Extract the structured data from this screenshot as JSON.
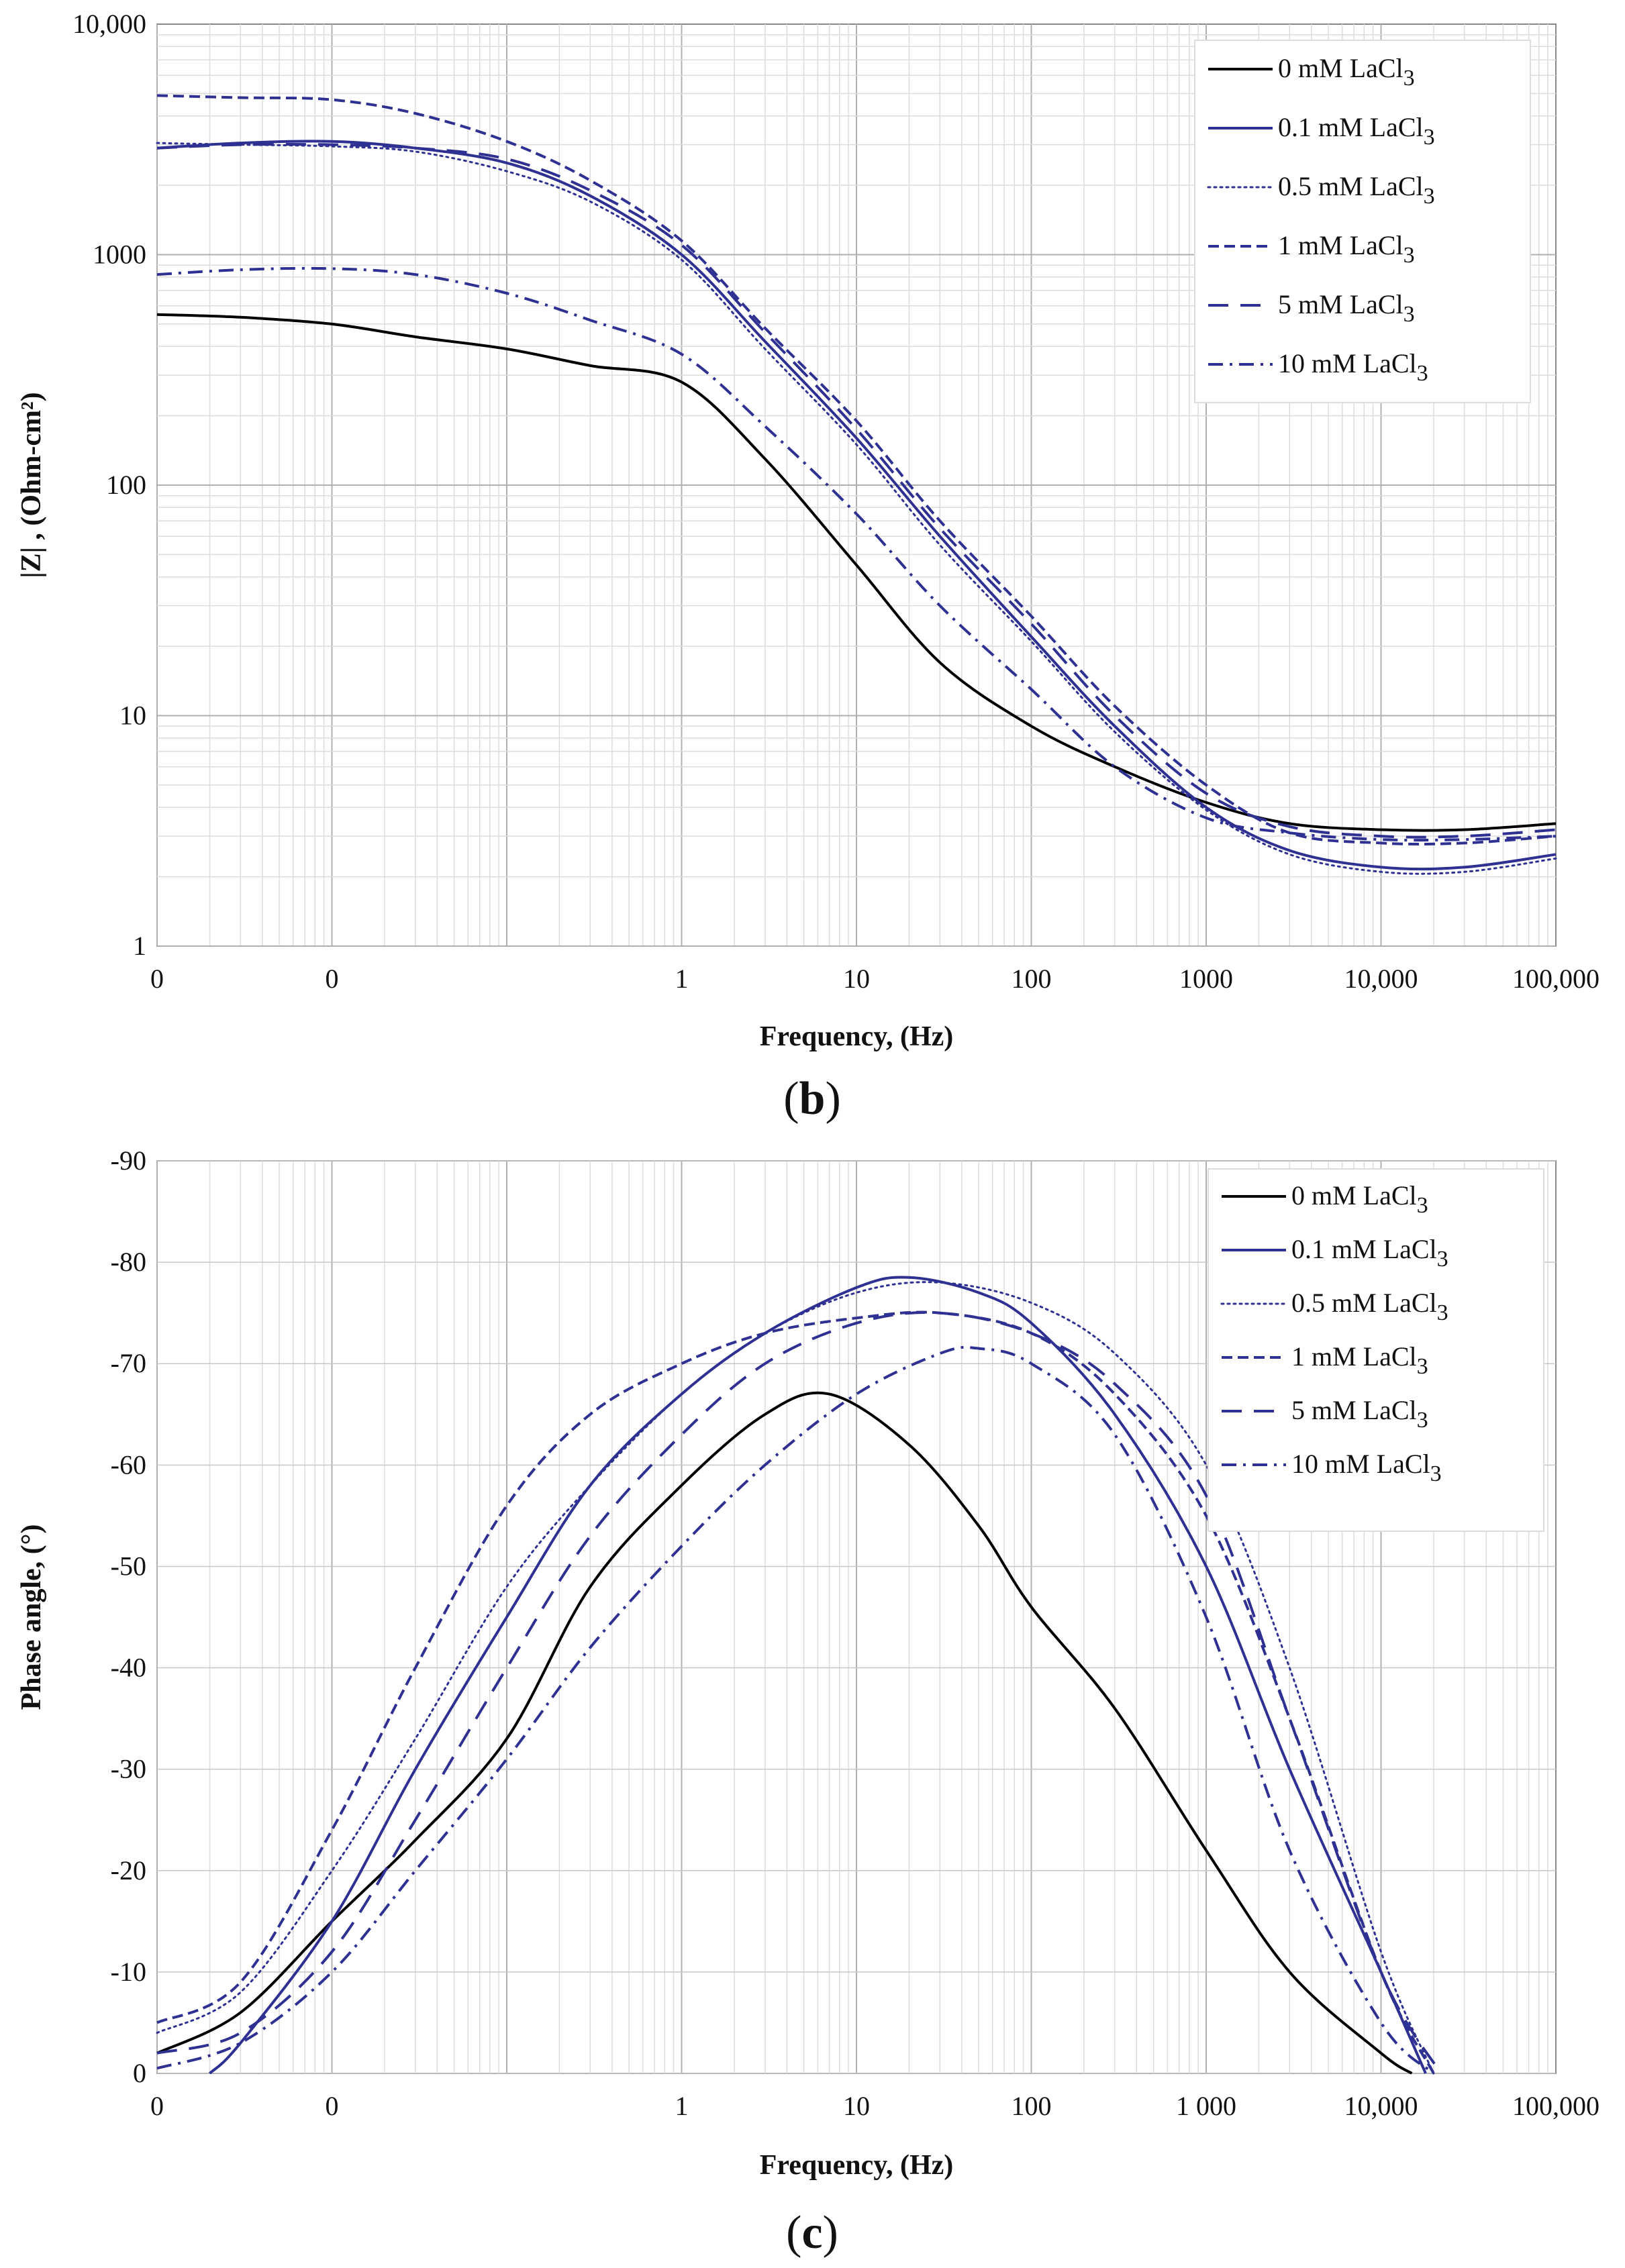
{
  "chart_data": [
    {
      "type": "line",
      "panel": "b",
      "panel_label": "b",
      "xlabel": "Frequency, (Hz)",
      "ylabel": "|Z| , (Ohm-cm²)",
      "x_scale": "log",
      "y_scale": "log",
      "xlim": [
        0.001,
        100000
      ],
      "ylim": [
        1,
        10000
      ],
      "x_tick_values": [
        0.001,
        0.01,
        1,
        10,
        100,
        1000,
        10000,
        100000
      ],
      "x_tick_labels": [
        "0",
        "0",
        "1",
        "10",
        "100",
        "1000",
        "10,000",
        "100,000"
      ],
      "y_tick_values": [
        1,
        10,
        100,
        1000,
        10000
      ],
      "y_tick_labels": [
        "1",
        "10",
        "100",
        "1000",
        "10,000"
      ],
      "grid": true,
      "legend_position": "top-right",
      "series": [
        {
          "name": "0 mM LaCl",
          "subscript": "3",
          "color": "#000000",
          "style": "solid",
          "x": [
            0.001,
            0.003,
            0.01,
            0.03,
            0.1,
            0.3,
            1,
            3,
            10,
            30,
            100,
            300,
            1000,
            3000,
            10000,
            30000,
            100000
          ],
          "y": [
            550,
            535,
            500,
            440,
            390,
            330,
            280,
            130,
            45,
            17,
            9,
            6,
            4.2,
            3.4,
            3.2,
            3.2,
            3.4
          ]
        },
        {
          "name": "0.1 mM LaCl",
          "subscript": "3",
          "color": "#2e3192",
          "style": "solid",
          "x": [
            0.001,
            0.003,
            0.01,
            0.03,
            0.1,
            0.3,
            1,
            3,
            10,
            30,
            100,
            300,
            1000,
            3000,
            10000,
            30000,
            100000
          ],
          "y": [
            2900,
            3050,
            3100,
            2900,
            2500,
            1800,
            1000,
            420,
            160,
            60,
            22,
            9,
            4,
            2.6,
            2.2,
            2.2,
            2.5
          ]
        },
        {
          "name": "0.5 mM LaCl",
          "subscript": "3",
          "color": "#2e3192",
          "style": "dotted",
          "x": [
            0.001,
            0.003,
            0.01,
            0.03,
            0.1,
            0.3,
            1,
            3,
            10,
            30,
            100,
            300,
            1000,
            3000,
            10000,
            30000,
            100000
          ],
          "y": [
            3050,
            3000,
            2950,
            2800,
            2300,
            1700,
            950,
            390,
            150,
            55,
            21,
            8.5,
            3.9,
            2.5,
            2.1,
            2.1,
            2.4
          ]
        },
        {
          "name": "1 mM LaCl",
          "subscript": "3",
          "color": "#2e3192",
          "style": "short-dash",
          "x": [
            0.001,
            0.003,
            0.01,
            0.03,
            0.1,
            0.3,
            1,
            3,
            10,
            30,
            100,
            300,
            1000,
            3000,
            10000,
            30000,
            100000
          ],
          "y": [
            4900,
            4800,
            4700,
            4100,
            3100,
            2100,
            1150,
            480,
            190,
            70,
            27,
            11,
            5,
            3.1,
            2.8,
            2.8,
            3.0
          ]
        },
        {
          "name": "5 mM LaCl",
          "subscript": "3",
          "color": "#2e3192",
          "style": "long-dash",
          "x": [
            0.001,
            0.003,
            0.01,
            0.03,
            0.1,
            0.3,
            1,
            3,
            10,
            30,
            100,
            300,
            1000,
            3000,
            10000,
            30000,
            100000
          ],
          "y": [
            2900,
            3000,
            3000,
            2900,
            2600,
            1900,
            1100,
            460,
            175,
            65,
            25,
            10,
            4.6,
            3.3,
            3.0,
            3.0,
            3.2
          ]
        },
        {
          "name": "10 mM LaCl",
          "subscript": "3",
          "color": "#2e3192",
          "style": "dash-dot",
          "x": [
            0.001,
            0.003,
            0.01,
            0.03,
            0.1,
            0.3,
            1,
            3,
            10,
            30,
            100,
            300,
            1000,
            3000,
            10000,
            30000,
            100000
          ],
          "y": [
            820,
            860,
            870,
            820,
            680,
            520,
            370,
            180,
            75,
            30,
            13,
            6,
            3.6,
            3.1,
            2.9,
            2.9,
            3.0
          ]
        }
      ]
    },
    {
      "type": "line",
      "panel": "c",
      "panel_label": "c",
      "xlabel": "Frequency, (Hz)",
      "ylabel": "Phase angle, (°)",
      "x_scale": "log",
      "y_scale": "linear",
      "xlim": [
        0.001,
        100000
      ],
      "ylim": [
        -90,
        0
      ],
      "y_inverted_top_value": -90,
      "x_tick_values": [
        0.001,
        0.01,
        1,
        10,
        100,
        1000,
        10000,
        100000
      ],
      "x_tick_labels": [
        "0",
        "0",
        "1",
        "10",
        "100",
        "1 000",
        "10,000",
        "100,000"
      ],
      "y_tick_values": [
        -90,
        -80,
        -70,
        -60,
        -50,
        -40,
        -30,
        -20,
        -10,
        0
      ],
      "y_tick_labels": [
        "-90",
        "-80",
        "-70",
        "-60",
        "-50",
        "-40",
        "-30",
        "-20",
        "-10",
        "0"
      ],
      "grid": true,
      "legend_position": "top-right",
      "series": [
        {
          "name": "0 mM LaCl",
          "subscript": "3",
          "color": "#000000",
          "style": "solid",
          "x": [
            0.001,
            0.003,
            0.01,
            0.03,
            0.1,
            0.3,
            1,
            3,
            7,
            20,
            50,
            100,
            300,
            1000,
            3000,
            10000,
            15000
          ],
          "y": [
            -2,
            -6,
            -15,
            -23,
            -33,
            -48,
            -58,
            -65,
            -67,
            -62,
            -54,
            -46,
            -36,
            -22,
            -10,
            -2,
            0
          ]
        },
        {
          "name": "0.1 mM LaCl",
          "subscript": "3",
          "color": "#2e3192",
          "style": "solid",
          "x": [
            0.002,
            0.003,
            0.01,
            0.03,
            0.1,
            0.3,
            1,
            3,
            10,
            20,
            50,
            100,
            300,
            1000,
            3000,
            10000,
            18000
          ],
          "y": [
            0,
            -3,
            -15,
            -30,
            -45,
            -58,
            -67,
            -73,
            -77.5,
            -78.5,
            -77,
            -74,
            -65,
            -50,
            -30,
            -10,
            0
          ]
        },
        {
          "name": "0.5 mM LaCl",
          "subscript": "3",
          "color": "#2e3192",
          "style": "dotted",
          "x": [
            0.001,
            0.003,
            0.01,
            0.03,
            0.1,
            0.3,
            1,
            3,
            10,
            30,
            100,
            300,
            1000,
            3000,
            10000,
            20000
          ],
          "y": [
            -4,
            -8,
            -20,
            -33,
            -48,
            -58,
            -67,
            -73,
            -77,
            -78,
            -76,
            -71,
            -60,
            -40,
            -12,
            0
          ]
        },
        {
          "name": "1 mM LaCl",
          "subscript": "3",
          "color": "#2e3192",
          "style": "short-dash",
          "x": [
            0.001,
            0.003,
            0.01,
            0.03,
            0.1,
            0.3,
            1,
            3,
            10,
            30,
            100,
            300,
            1000,
            3000,
            10000,
            20000
          ],
          "y": [
            -5,
            -9,
            -24,
            -40,
            -56,
            -65,
            -70,
            -73,
            -74.5,
            -75,
            -73,
            -67,
            -55,
            -35,
            -10,
            0
          ]
        },
        {
          "name": "5 mM LaCl",
          "subscript": "3",
          "color": "#2e3192",
          "style": "long-dash",
          "x": [
            0.001,
            0.003,
            0.01,
            0.03,
            0.1,
            0.3,
            1,
            3,
            10,
            30,
            100,
            300,
            1000,
            3000,
            10000,
            22000
          ],
          "y": [
            -2,
            -4,
            -12,
            -25,
            -40,
            -53,
            -63,
            -70,
            -74,
            -75,
            -73,
            -68,
            -57,
            -35,
            -10,
            0
          ]
        },
        {
          "name": "10 mM LaCl",
          "subscript": "3",
          "color": "#2e3192",
          "style": "dash-dot",
          "x": [
            0.001,
            0.003,
            0.01,
            0.03,
            0.1,
            0.3,
            1,
            3,
            10,
            30,
            50,
            100,
            300,
            1000,
            3000,
            10000,
            20000
          ],
          "y": [
            -0.5,
            -3,
            -10,
            -20,
            -31,
            -42,
            -52,
            -60,
            -67,
            -71,
            -71.5,
            -70,
            -63,
            -45,
            -22,
            -5,
            0
          ]
        }
      ]
    }
  ]
}
